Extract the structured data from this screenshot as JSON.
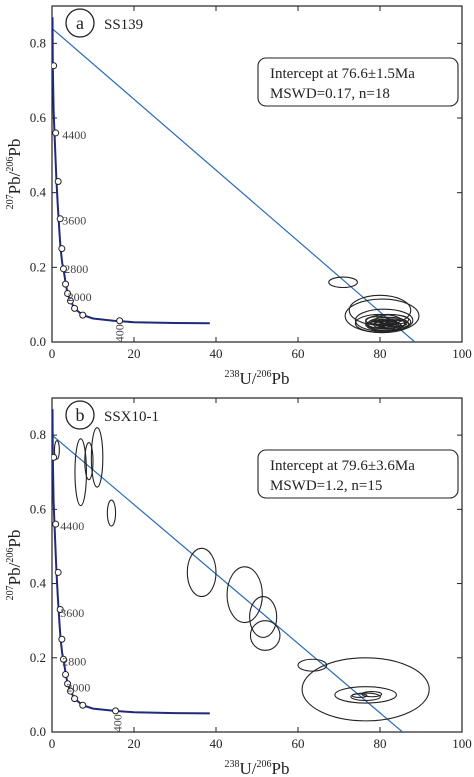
{
  "chart_data": [
    {
      "type": "scatter",
      "panel_letter": "a",
      "sample": "SS139",
      "xlabel": "238U/206Pb",
      "ylabel": "207Pb/206Pb",
      "xlim": [
        0,
        100
      ],
      "ylim": [
        0,
        0.9
      ],
      "xticks": [
        0,
        20,
        40,
        60,
        80,
        100
      ],
      "yticks": [
        0.0,
        0.2,
        0.4,
        0.6,
        0.8
      ],
      "intercept_text": "Intercept at 76.6±1.5Ma",
      "mswd_text": "MSWD=0.17, n=18",
      "discordia_line": {
        "y_intercept": 0.84,
        "x_intercept": 88.5
      },
      "concordia_curve": [
        [
          0.12,
          0.87
        ],
        [
          0.2,
          0.74
        ],
        [
          0.4,
          0.62
        ],
        [
          0.6,
          0.56
        ],
        [
          0.9,
          0.48
        ],
        [
          1.1,
          0.43
        ],
        [
          1.4,
          0.37
        ],
        [
          1.6,
          0.33
        ],
        [
          1.9,
          0.28
        ],
        [
          2.1,
          0.25
        ],
        [
          2.5,
          0.21
        ],
        [
          2.8,
          0.196
        ],
        [
          3.3,
          0.16
        ],
        [
          3.8,
          0.13
        ],
        [
          4.3,
          0.115
        ],
        [
          5.5,
          0.09
        ],
        [
          7.5,
          0.072
        ],
        [
          10,
          0.063
        ],
        [
          15,
          0.057
        ],
        [
          20,
          0.053
        ],
        [
          30,
          0.051
        ],
        [
          38.5,
          0.05
        ]
      ],
      "concordia_points": [
        [
          0.4,
          0.74
        ],
        [
          0.9,
          0.56
        ],
        [
          1.5,
          0.43
        ],
        [
          2,
          0.33
        ],
        [
          2.4,
          0.25
        ],
        [
          2.8,
          0.196
        ],
        [
          3.3,
          0.155
        ],
        [
          3.8,
          0.13
        ],
        [
          4.5,
          0.11
        ],
        [
          5.5,
          0.09
        ],
        [
          7.5,
          0.072
        ],
        [
          16.5,
          0.057
        ]
      ],
      "age_labels": [
        {
          "text": "4400",
          "x": 2.5,
          "y": 0.555
        },
        {
          "text": "3600",
          "x": 2.5,
          "y": 0.325
        },
        {
          "text": "2800",
          "x": 3.0,
          "y": 0.195
        },
        {
          "text": "2000",
          "x": 3.8,
          "y": 0.12
        },
        {
          "text": "400",
          "x": 17.5,
          "y": 0.01
        }
      ],
      "ellipses": [
        {
          "cx": 71,
          "cy": 0.16,
          "rx": 3.5,
          "ry": 0.014
        },
        {
          "cx": 80,
          "cy": 0.085,
          "rx": 7.5,
          "ry": 0.04
        },
        {
          "cx": 80.5,
          "cy": 0.07,
          "rx": 9,
          "ry": 0.045
        },
        {
          "cx": 81,
          "cy": 0.058,
          "rx": 7,
          "ry": 0.03
        },
        {
          "cx": 80,
          "cy": 0.05,
          "rx": 6,
          "ry": 0.024
        },
        {
          "cx": 82,
          "cy": 0.048,
          "rx": 5,
          "ry": 0.018
        },
        {
          "cx": 82,
          "cy": 0.054,
          "rx": 5.5,
          "ry": 0.02
        },
        {
          "cx": 81,
          "cy": 0.044,
          "rx": 4.2,
          "ry": 0.014
        },
        {
          "cx": 82.5,
          "cy": 0.05,
          "rx": 3.8,
          "ry": 0.012
        },
        {
          "cx": 81.5,
          "cy": 0.046,
          "rx": 3,
          "ry": 0.01
        },
        {
          "cx": 81,
          "cy": 0.052,
          "rx": 3.2,
          "ry": 0.009
        },
        {
          "cx": 82,
          "cy": 0.043,
          "rx": 2.2,
          "ry": 0.007
        },
        {
          "cx": 83,
          "cy": 0.047,
          "rx": 2,
          "ry": 0.006
        },
        {
          "cx": 80.5,
          "cy": 0.049,
          "rx": 1.8,
          "ry": 0.006
        },
        {
          "cx": 84,
          "cy": 0.05,
          "rx": 2.6,
          "ry": 0.008
        },
        {
          "cx": 79.5,
          "cy": 0.058,
          "rx": 3,
          "ry": 0.01
        },
        {
          "cx": 83,
          "cy": 0.06,
          "rx": 4,
          "ry": 0.013
        },
        {
          "cx": 79,
          "cy": 0.046,
          "rx": 2.5,
          "ry": 0.008
        }
      ]
    },
    {
      "type": "scatter",
      "panel_letter": "b",
      "sample": "SSX10-1",
      "xlabel": "238U/206Pb",
      "ylabel": "207Pb/206Pb",
      "xlim": [
        0,
        100
      ],
      "ylim": [
        0,
        0.9
      ],
      "xticks": [
        0,
        20,
        40,
        60,
        80,
        100
      ],
      "yticks": [
        0.0,
        0.2,
        0.4,
        0.6,
        0.8
      ],
      "intercept_text": "Intercept at 79.6±3.6Ma",
      "mswd_text": "MSWD=1.2, n=15",
      "discordia_line": {
        "y_intercept": 0.8,
        "x_intercept": 85.5
      },
      "concordia_curve": [
        [
          0.12,
          0.87
        ],
        [
          0.2,
          0.74
        ],
        [
          0.4,
          0.62
        ],
        [
          0.6,
          0.56
        ],
        [
          0.9,
          0.48
        ],
        [
          1.1,
          0.43
        ],
        [
          1.4,
          0.37
        ],
        [
          1.6,
          0.33
        ],
        [
          1.9,
          0.28
        ],
        [
          2.1,
          0.25
        ],
        [
          2.5,
          0.21
        ],
        [
          2.8,
          0.196
        ],
        [
          3.3,
          0.16
        ],
        [
          3.8,
          0.13
        ],
        [
          4.3,
          0.115
        ],
        [
          5.5,
          0.09
        ],
        [
          7.5,
          0.072
        ],
        [
          10,
          0.063
        ],
        [
          15,
          0.057
        ],
        [
          20,
          0.053
        ],
        [
          30,
          0.051
        ],
        [
          38.5,
          0.05
        ]
      ],
      "concordia_points": [
        [
          0.4,
          0.74
        ],
        [
          0.9,
          0.56
        ],
        [
          1.5,
          0.43
        ],
        [
          2,
          0.33
        ],
        [
          2.4,
          0.25
        ],
        [
          2.8,
          0.196
        ],
        [
          3.3,
          0.155
        ],
        [
          3.8,
          0.13
        ],
        [
          4.5,
          0.11
        ],
        [
          5.5,
          0.09
        ],
        [
          7.5,
          0.072
        ],
        [
          15.5,
          0.057
        ]
      ],
      "age_labels": [
        {
          "text": "4400",
          "x": 2.0,
          "y": 0.555
        },
        {
          "text": "3600",
          "x": 2.0,
          "y": 0.32
        },
        {
          "text": "2800",
          "x": 2.5,
          "y": 0.19
        },
        {
          "text": "2000",
          "x": 3.5,
          "y": 0.12
        },
        {
          "text": "400",
          "x": 17.0,
          "y": 0.01
        }
      ],
      "ellipses": [
        {
          "cx": 1.2,
          "cy": 0.76,
          "rx": 0.6,
          "ry": 0.025
        },
        {
          "cx": 7.0,
          "cy": 0.7,
          "rx": 1.4,
          "ry": 0.09
        },
        {
          "cx": 9.0,
          "cy": 0.73,
          "rx": 1.0,
          "ry": 0.05
        },
        {
          "cx": 11.0,
          "cy": 0.74,
          "rx": 1.4,
          "ry": 0.08
        },
        {
          "cx": 14.5,
          "cy": 0.59,
          "rx": 1.0,
          "ry": 0.035
        },
        {
          "cx": 36.5,
          "cy": 0.43,
          "rx": 3.5,
          "ry": 0.065
        },
        {
          "cx": 47,
          "cy": 0.37,
          "rx": 4.3,
          "ry": 0.075
        },
        {
          "cx": 51.5,
          "cy": 0.31,
          "rx": 3.3,
          "ry": 0.055
        },
        {
          "cx": 52,
          "cy": 0.26,
          "rx": 3.6,
          "ry": 0.04
        },
        {
          "cx": 63.5,
          "cy": 0.18,
          "rx": 3.5,
          "ry": 0.016
        },
        {
          "cx": 76.5,
          "cy": 0.115,
          "rx": 15.5,
          "ry": 0.085
        },
        {
          "cx": 76.5,
          "cy": 0.1,
          "rx": 7.5,
          "ry": 0.022
        },
        {
          "cx": 76.5,
          "cy": 0.095,
          "rx": 3.6,
          "ry": 0.01
        },
        {
          "cx": 78,
          "cy": 0.102,
          "rx": 2.4,
          "ry": 0.007
        },
        {
          "cx": 75,
          "cy": 0.098,
          "rx": 1.8,
          "ry": 0.005
        }
      ]
    }
  ]
}
